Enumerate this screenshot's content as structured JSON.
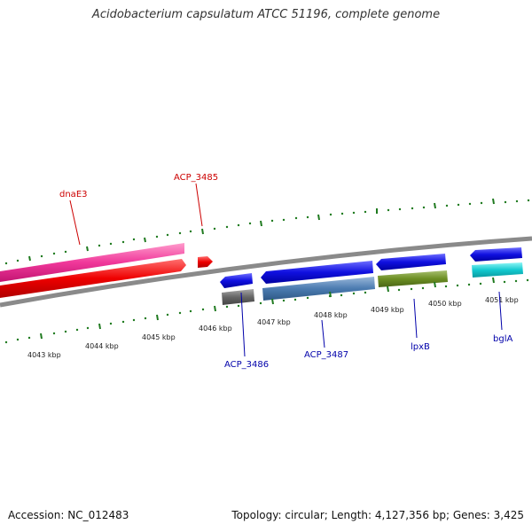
{
  "title": "Acidobacterium capsulatum ATCC 51196, complete genome",
  "footer": {
    "accession": "Accession: NC_012483",
    "summary": "Topology: circular; Length: 4,127,356 bp; Genes: 3,425"
  },
  "colors": {
    "tick_green": "#1f7a1f",
    "backbone": "#8a8a8a",
    "forward_label": "#cc0000",
    "reverse_label": "#0000aa"
  },
  "scale_labels": [
    "4043 kbp",
    "4044 kbp",
    "4045 kbp",
    "4046 kbp",
    "4047 kbp",
    "4048 kbp",
    "4049 kbp",
    "4050 kbp",
    "4051 kbp"
  ],
  "gene_labels": [
    "dnaE3",
    "ACP_3485",
    "ACP_3486",
    "ACP_3487",
    "lpxB",
    "bglA"
  ]
}
